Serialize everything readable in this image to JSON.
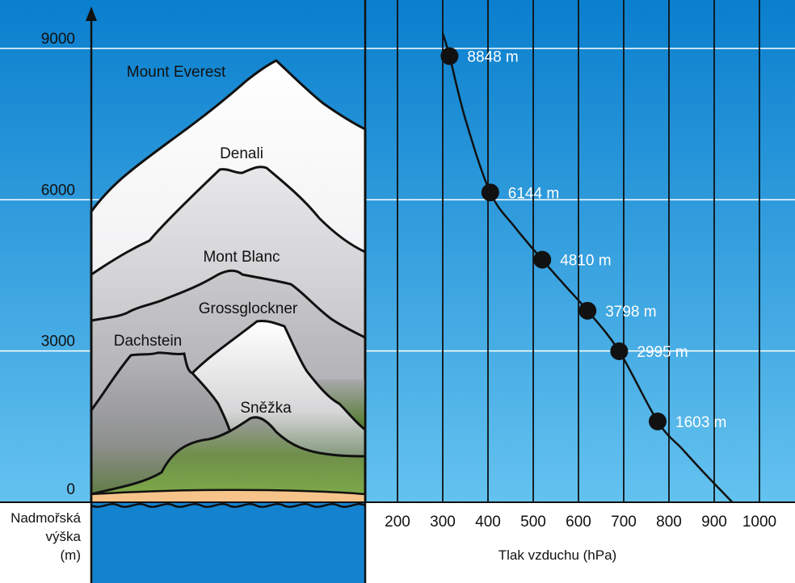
{
  "chart_data": {
    "type": "line",
    "xlabel": "Tlak vzduchu (hPa)",
    "ylabel_lines": [
      "Nadmořská",
      "výška",
      "(m)"
    ],
    "xlim": [
      0,
      1000
    ],
    "ylim": [
      0,
      9000
    ],
    "x_ticks": [
      200,
      300,
      400,
      500,
      600,
      700,
      800,
      900,
      1000
    ],
    "y_ticks": [
      0,
      3000,
      6000,
      9000
    ],
    "grid": true,
    "series": [
      {
        "points": [
          {
            "x": 315,
            "y": 8848,
            "label": "8848 m"
          },
          {
            "x": 405,
            "y": 6144,
            "label": "6144 m"
          },
          {
            "x": 520,
            "y": 4810,
            "label": "4810 m"
          },
          {
            "x": 620,
            "y": 3798,
            "label": "3798 m"
          },
          {
            "x": 690,
            "y": 2995,
            "label": "2995 m"
          },
          {
            "x": 775,
            "y": 1603,
            "label": "1603 m"
          }
        ]
      }
    ],
    "curve": [
      {
        "x": 300,
        "y": 9300
      },
      {
        "x": 315,
        "y": 8848
      },
      {
        "x": 350,
        "y": 7600
      },
      {
        "x": 405,
        "y": 6144
      },
      {
        "x": 460,
        "y": 5450
      },
      {
        "x": 520,
        "y": 4810
      },
      {
        "x": 570,
        "y": 4300
      },
      {
        "x": 620,
        "y": 3798
      },
      {
        "x": 690,
        "y": 2995
      },
      {
        "x": 775,
        "y": 1603
      },
      {
        "x": 830,
        "y": 1050
      },
      {
        "x": 880,
        "y": 560
      },
      {
        "x": 940,
        "y": 0
      }
    ],
    "peaks": [
      "Mount Everest",
      "Denali",
      "Mont Blanc",
      "Grossglockner",
      "Dachstein",
      "Sněžka"
    ],
    "colors": {
      "sky_top": "#0a7fce",
      "sky_bottom": "#64c2ef",
      "sea": "#1483cf",
      "beach": "#f6c48a",
      "grass": "#6f9f37",
      "rock": "#b9b9bd",
      "snow": "#ffffff"
    }
  }
}
